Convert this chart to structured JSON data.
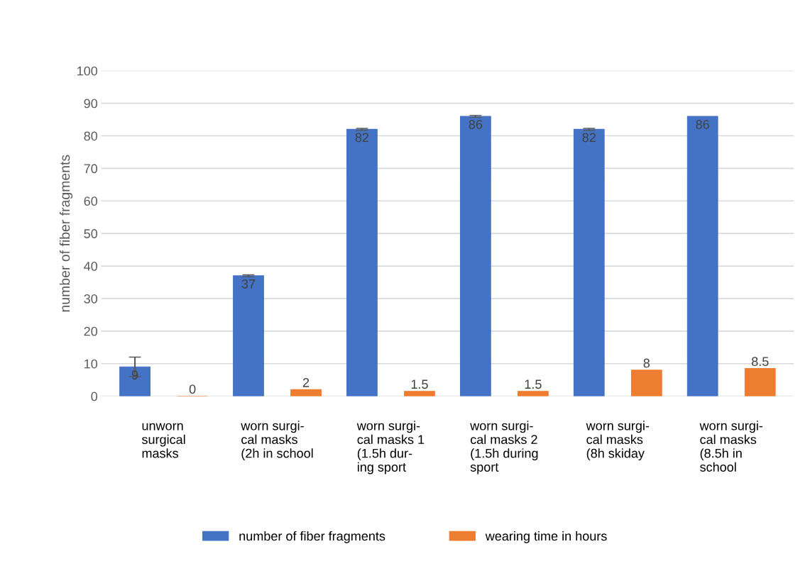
{
  "chart_data": {
    "type": "bar",
    "ylabel": "number of fiber fragments",
    "categories": [
      "unworn\nsurgical\nmasks",
      "worn surgi-\ncal masks\n(2h in school",
      "worn surgi-\ncal masks 1\n(1.5h dur-\ning sport",
      "worn surgi-\ncal masks 2\n(1.5h during\nsport",
      "worn surgi-\ncal masks\n(8h skiday",
      "worn surgi-\ncal masks\n(8.5h in\nschool"
    ],
    "series": [
      {
        "name": "number of fiber fragments",
        "color": "#4472c4",
        "values": [
          9,
          37,
          82,
          86,
          82,
          86
        ],
        "errors": [
          3,
          0.3,
          0.3,
          0.3,
          0.3,
          null
        ]
      },
      {
        "name": "wearing time in hours",
        "color": "#ed7d31",
        "values": [
          0,
          2,
          1.5,
          1.5,
          8,
          8.5
        ]
      }
    ],
    "ylim": [
      0,
      100
    ],
    "yticks": [
      0,
      10,
      20,
      30,
      40,
      50,
      60,
      70,
      80,
      90,
      100
    ],
    "grid": "y",
    "legend": "bottom",
    "data_labels": true
  }
}
